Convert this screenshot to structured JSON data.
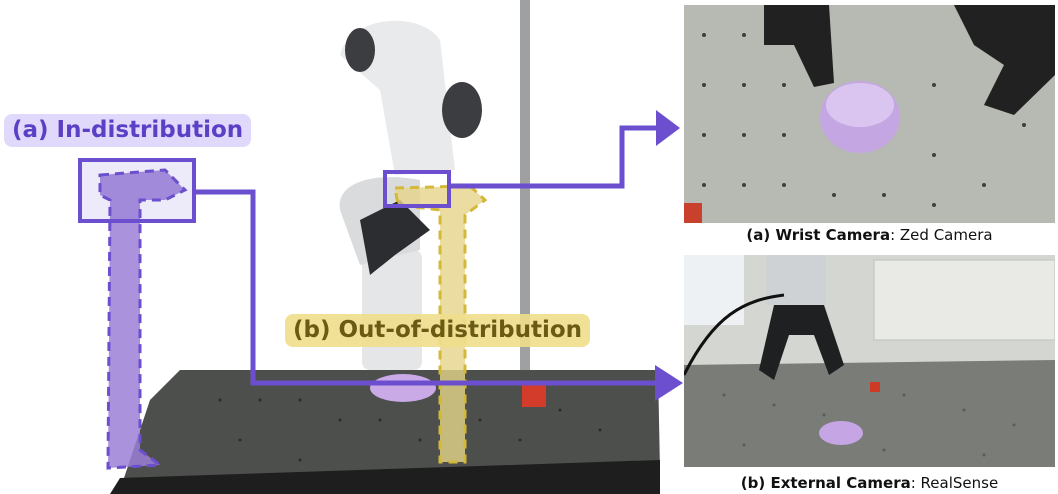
{
  "labels": {
    "in_distribution": "(a) In-distribution",
    "out_of_distribution": "(b) Out-of-distribution"
  },
  "captions": {
    "wrist": {
      "bold": "(a) Wrist Camera",
      "rest": ": Zed Camera"
    },
    "external": {
      "bold": "(b) External Camera",
      "rest": ": RealSense"
    }
  },
  "colors": {
    "purple": "#6b4fcf",
    "purple_fill": "#9b7fd6",
    "yellow": "#d4b83a",
    "yellow_fill": "#e6d48a",
    "table": "#4a4c4a",
    "bowl": "#c9a9e6",
    "cube": "#d33b2a"
  },
  "icons": {
    "arrow_to_wrist": "arrow-right-icon",
    "arrow_to_external": "arrow-right-icon"
  }
}
